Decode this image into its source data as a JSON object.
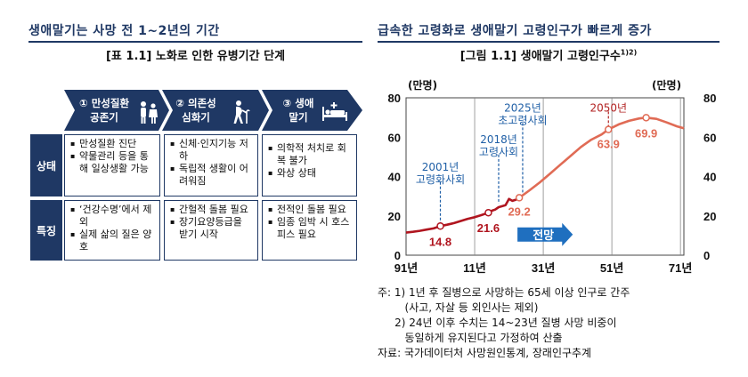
{
  "left": {
    "title": "생애말기는 사망 전 1~2년의 기간",
    "subtitle": "[표 1.1] 노화로 인한 유병기간 단계",
    "stages": [
      {
        "label_line1": "① 만성질환",
        "label_line2": "공존기",
        "icon": "elder-couple-icon"
      },
      {
        "label_line1": "② 의존성",
        "label_line2": "심화기",
        "icon": "walking-cane-elder-icon"
      },
      {
        "label_line1": "③ 생애",
        "label_line2": "말기",
        "icon": "hospital-bed-icon"
      }
    ],
    "rows": [
      {
        "head": "상태",
        "cells": [
          [
            "만성질환 진단",
            "약물관리 등을 통해 일상생활 가능"
          ],
          [
            "신체·인지기능 저하",
            "독립적 생활이 어려워짐"
          ],
          [
            "의학적 처치로 회복 불가",
            "와상 상태"
          ]
        ]
      },
      {
        "head": "특징",
        "cells": [
          [
            "‘건강수명’에서 제외",
            "실제 삶의 질은 양호"
          ],
          [
            "간헐적 돌봄 필요",
            "장기요양등급을 받기 시작"
          ],
          [
            "전적인 돌봄 필요",
            "임종 임박 시 호스피스 필요"
          ]
        ]
      }
    ]
  },
  "right": {
    "title": "급속한 고령화로 생애말기 고령인구가 빠르게 증가",
    "subtitle": "[그림 1.1] 생애말기 고령인구수",
    "subtitle_sup": "1)2)",
    "unit_left": "(만명)",
    "unit_right": "(만명)",
    "notes": [
      "주: 1) 1년 후 질병으로 사망하는 65세 이상 인구로 간주",
      "        (사고, 자살 등 외인사는 제외)",
      "     2) 24년 이후 수치는 14~23년 질병 사망 비중이",
      "        동일하게 유지된다고 가정하여 산출",
      "자료: 국가데이터처 사망원인통계, 장래인구추계"
    ]
  },
  "chart_data": {
    "type": "line",
    "title": "생애말기 고령인구수",
    "ylabel_left": "(만명)",
    "ylabel_right": "(만명)",
    "xlim": [
      1991,
      2072
    ],
    "ylim": [
      0,
      80
    ],
    "x_ticks": [
      "91년",
      "11년",
      "31년",
      "51년",
      "71년"
    ],
    "y_ticks": [
      0,
      20,
      40,
      60,
      80
    ],
    "projection_label": "전망",
    "projection_start": 2024,
    "series": [
      {
        "observed": [
          [
            1991,
            11.5
          ],
          [
            1993,
            11.9
          ],
          [
            1995,
            12.4
          ],
          [
            1997,
            13.0
          ],
          [
            1999,
            13.6
          ],
          [
            2001,
            14.8
          ],
          [
            2003,
            15.5
          ],
          [
            2005,
            16.3
          ],
          [
            2007,
            17.4
          ],
          [
            2009,
            18.5
          ],
          [
            2011,
            19.3
          ],
          [
            2013,
            20.4
          ],
          [
            2015,
            21.6
          ],
          [
            2016,
            22.6
          ],
          [
            2017,
            23.2
          ],
          [
            2018,
            24.4
          ],
          [
            2019,
            24.9
          ],
          [
            2020,
            25.4
          ],
          [
            2021,
            28.6
          ],
          [
            2022,
            27.6
          ],
          [
            2023,
            28.2
          ],
          [
            2024,
            29.2
          ]
        ],
        "projected": [
          [
            2024,
            29.2
          ],
          [
            2027,
            33.0
          ],
          [
            2030,
            37.0
          ],
          [
            2033,
            41.5
          ],
          [
            2036,
            46.0
          ],
          [
            2039,
            50.5
          ],
          [
            2042,
            55.0
          ],
          [
            2045,
            58.7
          ],
          [
            2048,
            61.4
          ],
          [
            2050,
            63.9
          ],
          [
            2053,
            66.5
          ],
          [
            2056,
            68.3
          ],
          [
            2059,
            69.5
          ],
          [
            2061,
            69.9
          ],
          [
            2064,
            69.3
          ],
          [
            2067,
            67.5
          ],
          [
            2070,
            65.5
          ],
          [
            2072,
            64.5
          ]
        ]
      }
    ],
    "data_labels": [
      {
        "x": 2001,
        "y": 14.8,
        "text": "14.8"
      },
      {
        "x": 2015,
        "y": 21.6,
        "text": "21.6"
      },
      {
        "x": 2024,
        "y": 29.2,
        "text": "29.2"
      },
      {
        "x": 2050,
        "y": 63.9,
        "text": "63.9"
      },
      {
        "x": 2061,
        "y": 69.9,
        "text": "69.9"
      }
    ],
    "annotations": [
      {
        "x": 2001,
        "lines": [
          "2001년",
          "고령화사회"
        ],
        "color": "#1f5fa6"
      },
      {
        "x": 2018,
        "lines": [
          "2018년",
          "고령사회"
        ],
        "color": "#1f5fa6"
      },
      {
        "x": 2025,
        "lines": [
          "2025년",
          "초고령사회"
        ],
        "color": "#1f5fa6"
      },
      {
        "x": 2050,
        "lines": [
          "2050년"
        ],
        "color": "#b22222"
      }
    ],
    "colors": {
      "observed": "#b0151f",
      "projected": "#e06b55",
      "projection_arrow": "#1f6fbf",
      "annotation_blue": "#1f5fa6",
      "annotation_red": "#b22222"
    }
  }
}
